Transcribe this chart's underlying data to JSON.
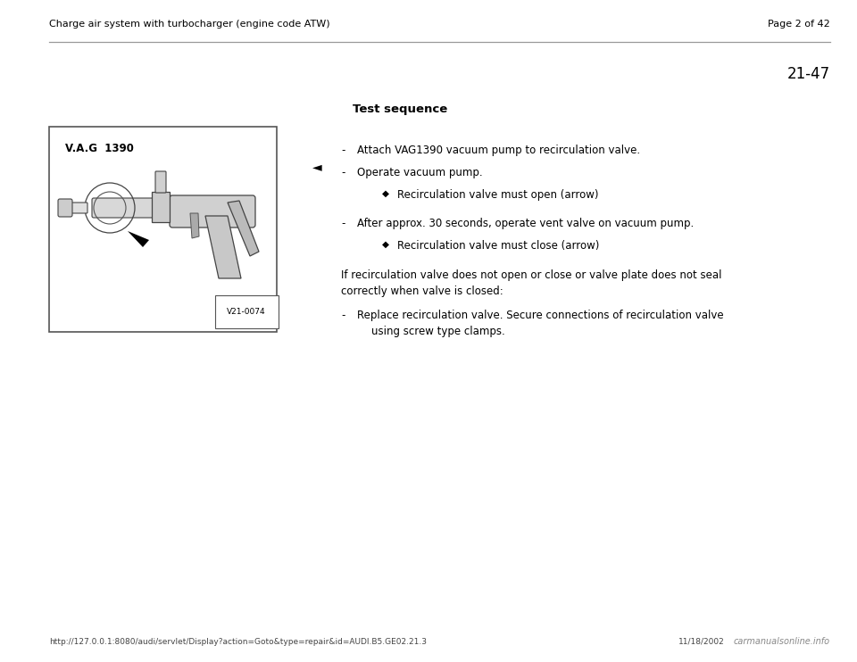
{
  "bg_color": "#ffffff",
  "page_bg": "#f0ede8",
  "header_left": "Charge air system with turbocharger (engine code ATW)",
  "header_right": "Page 2 of 42",
  "section_number": "21-47",
  "title": "Test sequence",
  "bullet_symbol": "◆",
  "bracket_arrow": "◄",
  "items": [
    {
      "level": 1,
      "type": "dash",
      "text": "Attach VAG1390 vacuum pump to recirculation valve."
    },
    {
      "level": 1,
      "type": "dash",
      "text": "Operate vacuum pump."
    },
    {
      "level": 2,
      "type": "bullet",
      "text": "Recirculation valve must open (arrow)"
    },
    {
      "level": 1,
      "type": "dash",
      "text": "After approx. 30 seconds, operate vent valve on vacuum pump."
    },
    {
      "level": 2,
      "type": "bullet",
      "text": "Recirculation valve must close (arrow)"
    }
  ],
  "condition_line1": "If recirculation valve does not open or close or valve plate does not seal",
  "condition_line2": "correctly when valve is closed:",
  "final_dash": "-",
  "final_line1": "Replace recirculation valve. Secure connections of recirculation valve",
  "final_line2": "using screw type clamps.",
  "image_label": "V21-0074",
  "image_vag_text": "V.A.G  1390",
  "footer_url": "http://127.0.0.1:8080/audi/servlet/Display?action=Goto&type=repair&id=AUDI.B5.GE02.21.3",
  "footer_date": "11/18/2002",
  "footer_logo": "carmanualsonline.info",
  "header_line_color": "#999999",
  "text_color": "#000000",
  "font_size_header": 8.0,
  "font_size_section": 12,
  "font_size_title": 9.5,
  "font_size_body": 8.5,
  "font_size_footer": 6.5
}
